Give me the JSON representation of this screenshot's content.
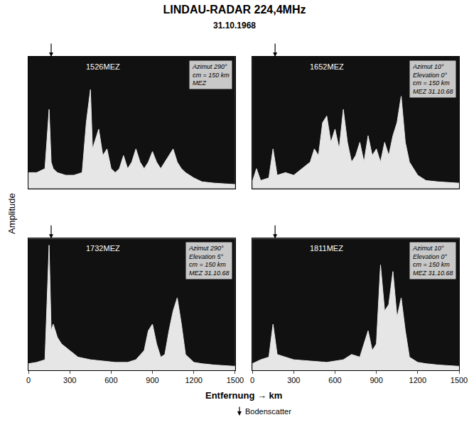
{
  "title": "LINDAU-RADAR 224,4MHz",
  "subtitle": "31.10.1968",
  "x_label": "Entfernung → km",
  "y_label": "Amplitude",
  "annotations": [
    {
      "text": "Bodenscatter",
      "x": 165
    }
  ],
  "chart_data": [
    {
      "type": "area",
      "title": "1526MEZ",
      "inset": [
        "Azimut 290°",
        "cm = 150 km",
        "MEZ"
      ],
      "color": "#e6e6e6",
      "tick_labels": false,
      "xlim": [
        0,
        1500
      ],
      "ylim": [
        0,
        1
      ],
      "x": [
        0,
        60,
        120,
        150,
        165,
        180,
        210,
        270,
        330,
        390,
        420,
        450,
        465,
        480,
        510,
        540,
        570,
        600,
        630,
        660,
        690,
        720,
        750,
        780,
        810,
        840,
        870,
        900,
        930,
        960,
        990,
        1020,
        1050,
        1080,
        1110,
        1140,
        1200,
        1260,
        1350,
        1500
      ],
      "values": [
        0.12,
        0.12,
        0.15,
        0.6,
        0.2,
        0.15,
        0.12,
        0.1,
        0.1,
        0.12,
        0.5,
        0.75,
        0.3,
        0.35,
        0.45,
        0.25,
        0.3,
        0.15,
        0.12,
        0.15,
        0.25,
        0.15,
        0.2,
        0.3,
        0.2,
        0.15,
        0.2,
        0.28,
        0.2,
        0.15,
        0.2,
        0.25,
        0.3,
        0.2,
        0.15,
        0.12,
        0.08,
        0.05,
        0.04,
        0.03
      ]
    },
    {
      "type": "area",
      "title": "1652MEZ",
      "inset": [
        "Azimut 10°",
        "Elevation 0°",
        "cm = 150 km",
        "MEZ 31.10.68"
      ],
      "color": "#e6e6e6",
      "tick_labels": false,
      "xlim": [
        0,
        1500
      ],
      "ylim": [
        0,
        1
      ],
      "x": [
        0,
        30,
        60,
        120,
        150,
        180,
        240,
        300,
        360,
        420,
        450,
        480,
        510,
        540,
        570,
        600,
        630,
        660,
        690,
        720,
        750,
        780,
        810,
        840,
        870,
        900,
        930,
        960,
        990,
        1020,
        1050,
        1080,
        1110,
        1140,
        1200,
        1260,
        1350,
        1500
      ],
      "values": [
        0.05,
        0.15,
        0.06,
        0.08,
        0.3,
        0.1,
        0.12,
        0.1,
        0.15,
        0.2,
        0.3,
        0.25,
        0.5,
        0.55,
        0.35,
        0.45,
        0.3,
        0.6,
        0.35,
        0.2,
        0.25,
        0.35,
        0.2,
        0.4,
        0.25,
        0.3,
        0.2,
        0.35,
        0.25,
        0.4,
        0.5,
        0.7,
        0.35,
        0.2,
        0.1,
        0.06,
        0.05,
        0.04
      ]
    },
    {
      "type": "area",
      "title": "1732MEZ",
      "inset": [
        "Azimut 290°",
        "Elevation 5°",
        "cm = 150 km",
        "MEZ 31.10.68"
      ],
      "color": "#e6e6e6",
      "tick_labels": "x",
      "xlim": [
        0,
        1500
      ],
      "ylim": [
        0,
        1
      ],
      "xticks": [
        0,
        300,
        600,
        900,
        1200,
        1500
      ],
      "x": [
        0,
        60,
        120,
        150,
        165,
        180,
        210,
        240,
        300,
        360,
        450,
        540,
        630,
        720,
        780,
        840,
        870,
        900,
        930,
        960,
        990,
        1020,
        1050,
        1080,
        1110,
        1140,
        1200,
        1260,
        1350,
        1500
      ],
      "values": [
        0.05,
        0.06,
        0.08,
        0.95,
        0.3,
        0.35,
        0.25,
        0.2,
        0.15,
        0.1,
        0.08,
        0.07,
        0.06,
        0.06,
        0.08,
        0.15,
        0.3,
        0.35,
        0.2,
        0.1,
        0.12,
        0.3,
        0.45,
        0.55,
        0.35,
        0.12,
        0.06,
        0.05,
        0.04,
        0.03
      ]
    },
    {
      "type": "area",
      "title": "1811MEZ",
      "inset": [
        "Azimut 10°",
        "Elevation 0°",
        "cm = 150 km",
        "MEZ 31.10.68"
      ],
      "color": "#e6e6e6",
      "tick_labels": "x",
      "xlim": [
        0,
        1500
      ],
      "ylim": [
        0,
        1
      ],
      "xticks": [
        0,
        300,
        600,
        900,
        1200,
        1500
      ],
      "x": [
        0,
        60,
        120,
        150,
        180,
        240,
        300,
        420,
        540,
        660,
        720,
        780,
        840,
        870,
        900,
        930,
        960,
        990,
        1020,
        1050,
        1080,
        1110,
        1140,
        1200,
        1260,
        1350,
        1500
      ],
      "values": [
        0.05,
        0.08,
        0.1,
        0.35,
        0.12,
        0.1,
        0.08,
        0.07,
        0.06,
        0.08,
        0.12,
        0.1,
        0.3,
        0.15,
        0.2,
        0.8,
        0.45,
        0.5,
        0.75,
        0.4,
        0.55,
        0.3,
        0.1,
        0.06,
        0.05,
        0.04,
        0.03
      ]
    }
  ]
}
